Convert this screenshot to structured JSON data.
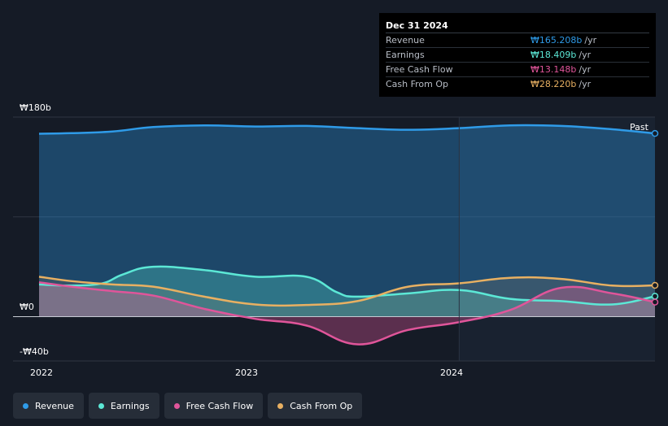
{
  "tooltip": {
    "date": "Dec 31 2024",
    "rows": [
      {
        "name": "Revenue",
        "value": "₩165.208b",
        "unit": "/yr",
        "color": "#2f9be8"
      },
      {
        "name": "Earnings",
        "value": "₩18.409b",
        "unit": "/yr",
        "color": "#5ce8d6"
      },
      {
        "name": "Free Cash Flow",
        "value": "₩13.148b",
        "unit": "/yr",
        "color": "#e0559a"
      },
      {
        "name": "Cash From Op",
        "value": "₩28.220b",
        "unit": "/yr",
        "color": "#e8b062"
      }
    ]
  },
  "past_label": "Past",
  "legend": [
    {
      "name": "Revenue",
      "color": "#2f9be8"
    },
    {
      "name": "Earnings",
      "color": "#5ce8d6"
    },
    {
      "name": "Free Cash Flow",
      "color": "#e0559a"
    },
    {
      "name": "Cash From Op",
      "color": "#e8b062"
    }
  ],
  "chart_data": {
    "type": "area",
    "ylim": [
      -40,
      180
    ],
    "xlim": [
      2021.94,
      2024.96
    ],
    "y_ticks": [
      {
        "value": 180,
        "label": "₩180b"
      },
      {
        "value": 0,
        "label": "₩0"
      },
      {
        "value": -40,
        "label": "-₩40b"
      }
    ],
    "x_ticks": [
      {
        "value": 2022.0,
        "label": "2022"
      },
      {
        "value": 2023.0,
        "label": "2023"
      },
      {
        "value": 2024.0,
        "label": "2024"
      }
    ],
    "past_start": 2024.0,
    "grid": true,
    "series": [
      {
        "name": "Revenue",
        "color": "#2f9be8",
        "x": [
          2021.94,
          2022.1,
          2022.3,
          2022.5,
          2022.75,
          2023.0,
          2023.25,
          2023.5,
          2023.75,
          2024.0,
          2024.25,
          2024.5,
          2024.75,
          2024.96
        ],
        "y": [
          165,
          165.5,
          167,
          171,
          172.5,
          171.5,
          172,
          170,
          168.5,
          170,
          172.5,
          172,
          169,
          165.2
        ]
      },
      {
        "name": "Earnings",
        "color": "#5ce8d6",
        "x": [
          2021.94,
          2022.1,
          2022.25,
          2022.35,
          2022.5,
          2022.75,
          2023.0,
          2023.25,
          2023.4,
          2023.5,
          2023.75,
          2024.0,
          2024.25,
          2024.5,
          2024.75,
          2024.96
        ],
        "y": [
          29,
          28,
          30,
          38,
          45,
          42,
          36,
          36,
          22,
          18,
          21,
          24,
          16,
          14,
          11,
          18.4
        ]
      },
      {
        "name": "Free Cash Flow",
        "color": "#e0559a",
        "x": [
          2021.94,
          2022.1,
          2022.3,
          2022.5,
          2022.75,
          2023.0,
          2023.25,
          2023.5,
          2023.75,
          2024.0,
          2024.25,
          2024.5,
          2024.75,
          2024.96
        ],
        "y": [
          31,
          27,
          23,
          19,
          7,
          -2,
          -8,
          -25,
          -12,
          -5,
          6,
          26,
          21,
          13.1
        ]
      },
      {
        "name": "Cash From Op",
        "color": "#e8b062",
        "x": [
          2021.94,
          2022.1,
          2022.3,
          2022.5,
          2022.75,
          2023.0,
          2023.25,
          2023.5,
          2023.75,
          2024.0,
          2024.25,
          2024.5,
          2024.75,
          2024.96
        ],
        "y": [
          36,
          32,
          29,
          27,
          18,
          11,
          10.5,
          14,
          27,
          30,
          35,
          34,
          28,
          28.2
        ]
      }
    ]
  }
}
